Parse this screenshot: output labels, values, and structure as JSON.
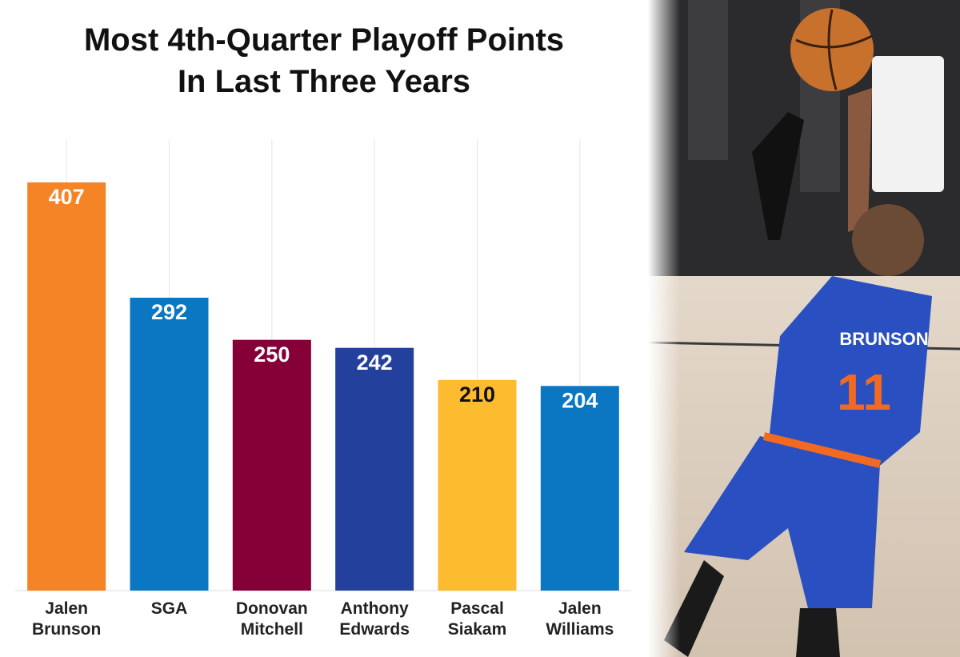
{
  "chart_data": {
    "type": "bar",
    "title": [
      "Most 4th-Quarter Playoff Points",
      "In Last Three Years"
    ],
    "categories": [
      "Jalen Brunson",
      "SGA",
      "Donovan Mitchell",
      "Anthony Edwards",
      "Pascal Siakam",
      "Jalen Williams"
    ],
    "values": [
      407,
      292,
      250,
      242,
      210,
      204
    ],
    "colors": [
      "#f58426",
      "#0b77c2",
      "#860038",
      "#23409c",
      "#fdbb30",
      "#0b77c2"
    ],
    "label_colors": [
      "#ffffff",
      "#ffffff",
      "#ffffff",
      "#ffffff",
      "#111111",
      "#ffffff"
    ],
    "ylim": [
      0,
      450
    ]
  }
}
